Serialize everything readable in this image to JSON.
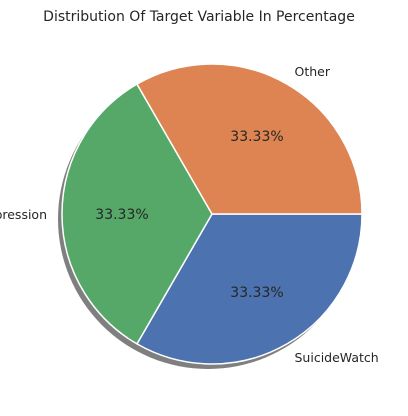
{
  "chart_data": {
    "type": "pie",
    "title": "Distribution Of Target Variable In Percentage",
    "categories": [
      "SuicideWatch",
      "Depression",
      "Other"
    ],
    "values": [
      33.33,
      33.33,
      33.33
    ],
    "value_labels": [
      "33.33%",
      "33.33%",
      "33.33%"
    ],
    "colors": [
      "#4C72B0",
      "#55A868",
      "#DD8452"
    ],
    "start_angle_degrees": 0,
    "direction": "clockwise",
    "shadow": true,
    "legend": "none"
  }
}
